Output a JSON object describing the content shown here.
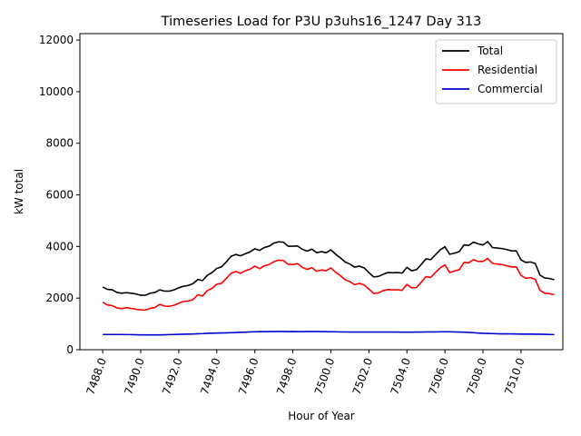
{
  "chart_data": {
    "type": "line",
    "title": "Timeseries Load for P3U p3uhs16_1247  Day 313",
    "xlabel": "Hour of Year",
    "ylabel": "kW total",
    "xlim": [
      7486.8,
      7512.2
    ],
    "ylim": [
      0,
      12250
    ],
    "xticks": [
      7488,
      7490,
      7492,
      7494,
      7496,
      7498,
      7500,
      7502,
      7504,
      7506,
      7508,
      7510
    ],
    "xtick_labels": [
      "7488.0",
      "7490.0",
      "7492.0",
      "7494.0",
      "7496.0",
      "7498.0",
      "7500.0",
      "7502.0",
      "7504.0",
      "7506.0",
      "7508.0",
      "7510.0"
    ],
    "yticks": [
      0,
      2000,
      4000,
      6000,
      8000,
      10000,
      12000
    ],
    "ytick_labels": [
      "0",
      "2000",
      "4000",
      "6000",
      "8000",
      "10000",
      "12000"
    ],
    "legend_position": "top-right",
    "x": [
      7488.0,
      7488.25,
      7488.5,
      7488.75,
      7489.0,
      7489.25,
      7489.5,
      7489.75,
      7490.0,
      7490.25,
      7490.5,
      7490.75,
      7491.0,
      7491.25,
      7491.5,
      7491.75,
      7492.0,
      7492.25,
      7492.5,
      7492.75,
      7493.0,
      7493.25,
      7493.5,
      7493.75,
      7494.0,
      7494.25,
      7494.5,
      7494.75,
      7495.0,
      7495.25,
      7495.5,
      7495.75,
      7496.0,
      7496.25,
      7496.5,
      7496.75,
      7497.0,
      7497.25,
      7497.5,
      7497.75,
      7498.0,
      7498.25,
      7498.5,
      7498.75,
      7499.0,
      7499.25,
      7499.5,
      7499.75,
      7500.0,
      7500.25,
      7500.5,
      7500.75,
      7501.0,
      7501.25,
      7501.5,
      7501.75,
      7502.0,
      7502.25,
      7502.5,
      7502.75,
      7503.0,
      7503.25,
      7503.5,
      7503.75,
      7504.0,
      7504.25,
      7504.5,
      7504.75,
      7505.0,
      7505.25,
      7505.5,
      7505.75,
      7506.0,
      7506.25,
      7506.5,
      7506.75,
      7507.0,
      7507.25,
      7507.5,
      7507.75,
      7508.0,
      7508.25,
      7508.5,
      7508.75,
      7509.0,
      7509.25,
      7509.5,
      7509.75,
      7510.0,
      7510.25,
      7510.5,
      7510.75,
      7511.0,
      7511.25,
      7511.5,
      7511.75
    ],
    "series": [
      {
        "name": "Total",
        "color": "#000000",
        "values": [
          2430,
          2340,
          2320,
          2220,
          2190,
          2210,
          2190,
          2160,
          2110,
          2110,
          2190,
          2220,
          2320,
          2270,
          2270,
          2320,
          2400,
          2460,
          2490,
          2560,
          2720,
          2680,
          2880,
          2990,
          3150,
          3210,
          3400,
          3620,
          3690,
          3640,
          3720,
          3790,
          3910,
          3850,
          3960,
          4010,
          4130,
          4180,
          4170,
          4010,
          4010,
          4020,
          3890,
          3820,
          3900,
          3760,
          3800,
          3760,
          3870,
          3700,
          3560,
          3400,
          3320,
          3200,
          3240,
          3170,
          2990,
          2820,
          2840,
          2920,
          2990,
          2980,
          2990,
          2970,
          3190,
          3060,
          3100,
          3300,
          3520,
          3490,
          3680,
          3870,
          3990,
          3700,
          3740,
          3800,
          4060,
          4040,
          4170,
          4100,
          4060,
          4190,
          3960,
          3940,
          3920,
          3880,
          3830,
          3830,
          3480,
          3380,
          3400,
          3340,
          2890,
          2780,
          2760,
          2710
        ]
      },
      {
        "name": "Residential",
        "color": "#ff0000",
        "values": [
          1840,
          1730,
          1710,
          1620,
          1590,
          1630,
          1600,
          1570,
          1540,
          1540,
          1600,
          1640,
          1760,
          1690,
          1680,
          1720,
          1800,
          1870,
          1890,
          1940,
          2130,
          2080,
          2290,
          2380,
          2540,
          2570,
          2760,
          2960,
          3030,
          2960,
          3060,
          3120,
          3240,
          3140,
          3250,
          3300,
          3410,
          3470,
          3460,
          3310,
          3300,
          3340,
          3190,
          3110,
          3180,
          3040,
          3090,
          3060,
          3170,
          3000,
          2870,
          2710,
          2640,
          2520,
          2570,
          2510,
          2350,
          2180,
          2200,
          2290,
          2330,
          2320,
          2320,
          2300,
          2530,
          2400,
          2410,
          2610,
          2830,
          2800,
          2990,
          3170,
          3290,
          2990,
          3050,
          3100,
          3380,
          3370,
          3490,
          3420,
          3420,
          3540,
          3340,
          3320,
          3300,
          3250,
          3210,
          3210,
          2880,
          2770,
          2790,
          2730,
          2300,
          2190,
          2170,
          2130
        ]
      },
      {
        "name": "Commercial",
        "color": "#0000cc",
        "values": [
          590,
          590,
          590,
          590,
          590,
          585,
          585,
          580,
          575,
          575,
          575,
          575,
          575,
          580,
          585,
          590,
          595,
          600,
          605,
          610,
          620,
          625,
          635,
          640,
          645,
          650,
          655,
          660,
          665,
          675,
          680,
          690,
          695,
          700,
          700,
          700,
          705,
          705,
          705,
          700,
          705,
          700,
          700,
          705,
          705,
          705,
          700,
          700,
          695,
          695,
          690,
          690,
          685,
          685,
          685,
          685,
          685,
          685,
          685,
          685,
          685,
          685,
          685,
          680,
          680,
          680,
          685,
          685,
          690,
          690,
          690,
          695,
          695,
          695,
          690,
          685,
          680,
          670,
          660,
          645,
          635,
          630,
          625,
          620,
          615,
          615,
          615,
          610,
          605,
          605,
          605,
          600,
          600,
          595,
          590,
          585
        ]
      }
    ]
  }
}
